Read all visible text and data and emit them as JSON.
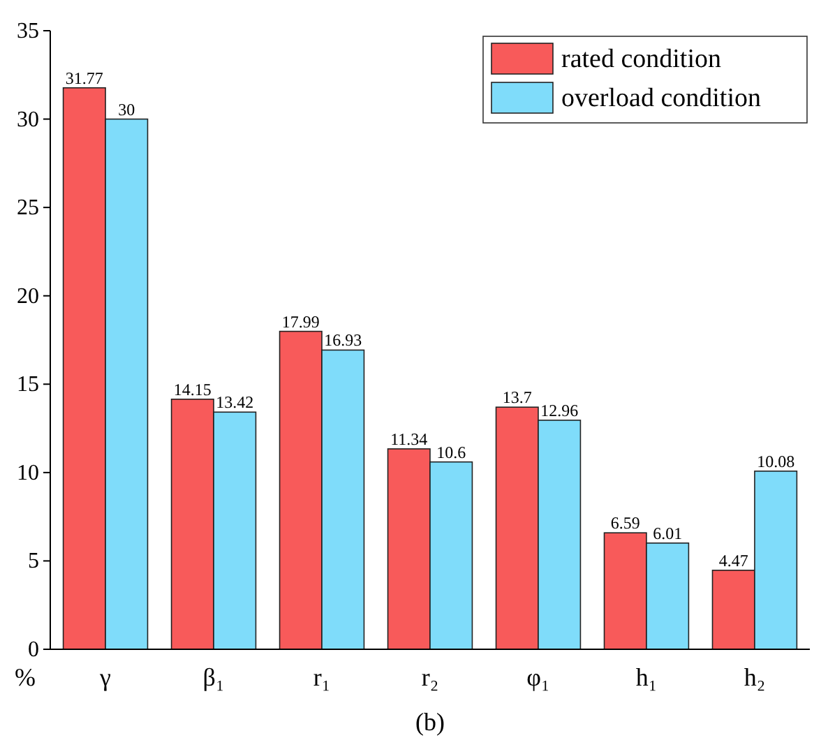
{
  "chart_data": {
    "type": "bar",
    "ylabel": "%",
    "annotations": [
      "(b)"
    ],
    "categories": [
      "γ",
      "β₁",
      "r₁",
      "r₂",
      "φ₁",
      "h₁",
      "h₂"
    ],
    "series": [
      {
        "name": "rated condition",
        "color": "#f85a5a",
        "values": [
          31.77,
          14.15,
          17.99,
          11.34,
          13.7,
          6.59,
          4.47
        ]
      },
      {
        "name": "overload condition",
        "color": "#7fdcfa",
        "values": [
          30,
          13.42,
          16.93,
          10.6,
          12.96,
          6.01,
          10.08
        ]
      }
    ],
    "ylim": [
      0,
      35
    ],
    "yticks": [
      0,
      5,
      10,
      15,
      20,
      25,
      30,
      35
    ],
    "data_labels": true,
    "legend": "top right",
    "grid": false
  }
}
